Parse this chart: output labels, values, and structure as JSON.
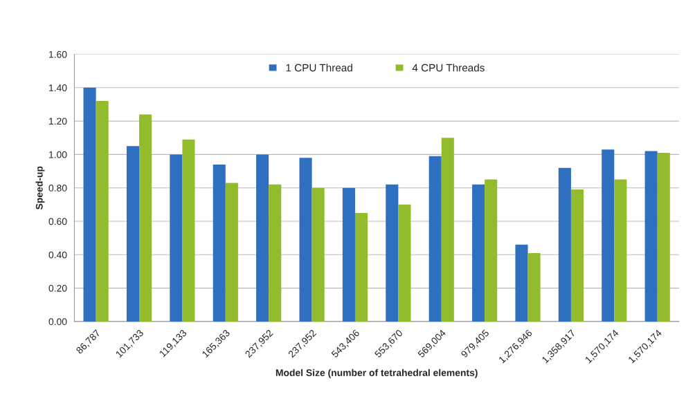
{
  "chart_data": {
    "type": "bar",
    "xlabel": "Model Size (number of tetrahedral elements)",
    "ylabel": "Speed-up",
    "categories": [
      "86,787",
      "101,733",
      "119,133",
      "165,363",
      "237,952",
      "237,952",
      "543,406",
      "553,670",
      "569,004",
      "979,405",
      "1,276,946",
      "1,358,917",
      "1,570,174",
      "1,570,174"
    ],
    "series": [
      {
        "name": "1 CPU Thread",
        "color": "#2f6fbf",
        "values": [
          1.4,
          1.05,
          1.0,
          0.94,
          1.0,
          0.98,
          0.8,
          0.82,
          0.99,
          0.82,
          0.46,
          0.92,
          1.03,
          1.02
        ]
      },
      {
        "name": "4 CPU Threads",
        "color": "#92bb2e",
        "values": [
          1.32,
          1.24,
          1.09,
          0.83,
          0.82,
          0.8,
          0.65,
          0.7,
          1.1,
          0.85,
          0.41,
          0.79,
          0.85,
          1.01
        ]
      }
    ],
    "ylim": [
      0,
      1.6
    ],
    "yticks": [
      {
        "value": 0,
        "label": "0.00"
      },
      {
        "value": 0.2,
        "label": "0.20"
      },
      {
        "value": 0.4,
        "label": "0.40"
      },
      {
        "value": 0.6,
        "label": "0.60"
      },
      {
        "value": 0.8,
        "label": "0.80"
      },
      {
        "value": 1.0,
        "label": "1.00"
      },
      {
        "value": 1.2,
        "label": "1.20"
      },
      {
        "value": 1.4,
        "label": "1.40"
      },
      {
        "value": 1.6,
        "label": "1.60"
      }
    ],
    "grid": "y",
    "legend": "top"
  }
}
